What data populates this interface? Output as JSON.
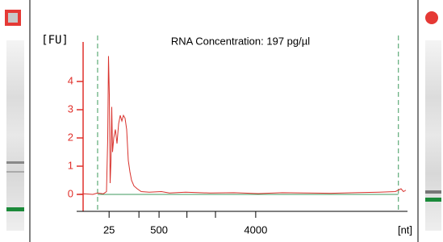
{
  "chart_data": {
    "type": "line",
    "title": "RNA Concentration: 197 pg/µl",
    "y_label": "[FU]",
    "x_label": "[nt]",
    "xlim": [
      18,
      69
    ],
    "ylim": [
      -0.6,
      5.4
    ],
    "yticks": [
      0,
      1,
      2,
      3,
      4
    ],
    "xticks": [
      {
        "value": 23.0,
        "label": "25"
      },
      {
        "value": 27.6,
        "label": null
      },
      {
        "value": 30.7,
        "label": "500"
      },
      {
        "value": 35.0,
        "label": null
      },
      {
        "value": 39.4,
        "label": null
      },
      {
        "value": 45.6,
        "label": "4000"
      }
    ],
    "markers": [
      21.23,
      67.6
    ],
    "marker_color": "#3d9a5c",
    "axis_color": "#e0302b",
    "series": [
      {
        "color": "#d8312c",
        "x": [
          18.0,
          19.24,
          20.49,
          21.23,
          22.1,
          22.6,
          22.79,
          22.91,
          23.04,
          23.16,
          23.29,
          23.41,
          23.53,
          23.72,
          23.97,
          24.22,
          24.47,
          24.72,
          24.97,
          25.21,
          25.46,
          25.71,
          25.96,
          26.21,
          26.46,
          26.83,
          27.33,
          27.95,
          29.19,
          31.06,
          32.3,
          34.79,
          38.52,
          42.25,
          45.98,
          49.71,
          53.45,
          57.18,
          60.91,
          64.64,
          67.13,
          68.0,
          68.38,
          68.75
        ],
        "values": [
          0.0,
          0.02,
          0.0,
          0.05,
          0.02,
          0.1,
          2.0,
          4.9,
          3.5,
          0.4,
          1.2,
          3.1,
          1.5,
          2.0,
          2.3,
          1.8,
          2.5,
          2.8,
          2.6,
          2.8,
          2.7,
          2.3,
          1.2,
          0.8,
          0.5,
          0.3,
          0.2,
          0.1,
          0.08,
          0.1,
          0.05,
          0.08,
          0.05,
          0.06,
          0.03,
          0.06,
          0.05,
          0.04,
          0.06,
          0.08,
          0.1,
          0.2,
          0.1,
          0.15
        ]
      }
    ]
  }
}
